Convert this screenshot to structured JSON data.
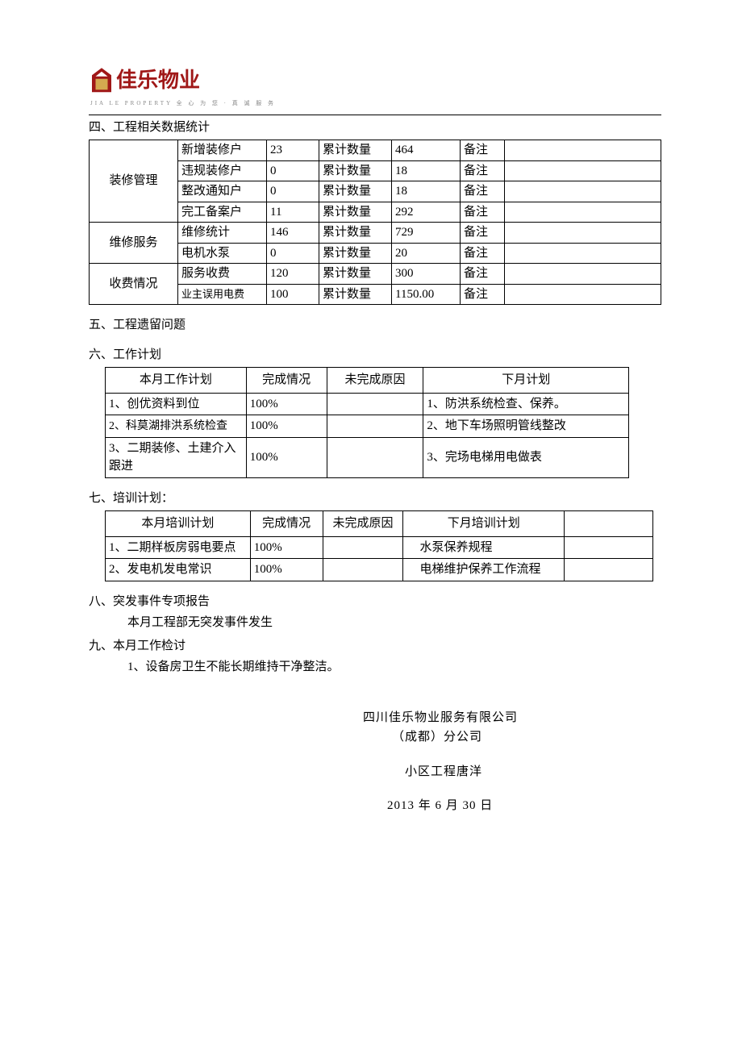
{
  "logo": {
    "name": "佳乐物业",
    "subtitle": "JIA LE PROPERTY 全 心 为 您 · 真 诚 服 务",
    "color": "#a01818"
  },
  "section4": {
    "title": "四、工程相关数据统计",
    "groups": [
      {
        "category": "装修管理",
        "rows": [
          {
            "item": "新增装修户",
            "val": "23",
            "cum_label": "累计数量",
            "cum": "464",
            "note": "备注"
          },
          {
            "item": "违规装修户",
            "val": "0",
            "cum_label": "累计数量",
            "cum": "18",
            "note": "备注"
          },
          {
            "item": "整改通知户",
            "val": "0",
            "cum_label": "累计数量",
            "cum": "18",
            "note": "备注"
          },
          {
            "item": "完工备案户",
            "val": "11",
            "cum_label": "累计数量",
            "cum": "292",
            "note": "备注"
          }
        ]
      },
      {
        "category": "维修服务",
        "rows": [
          {
            "item": "维修统计",
            "val": "146",
            "cum_label": "累计数量",
            "cum": "729",
            "note": "备注"
          },
          {
            "item": "电机水泵",
            "val": "0",
            "cum_label": "累计数量",
            "cum": "20",
            "note": "备注"
          }
        ]
      },
      {
        "category": "收费情况",
        "rows": [
          {
            "item": "服务收费",
            "val": "120",
            "cum_label": "累计数量",
            "cum": "300",
            "note": "备注"
          },
          {
            "item": "业主误用电费",
            "val": "100",
            "cum_label": "累计数量",
            "cum": "1150.00",
            "note": "备注",
            "small": true
          }
        ]
      }
    ]
  },
  "section5": {
    "title": "五、工程遗留问题"
  },
  "section6": {
    "title": "六、工作计划",
    "headers": [
      "本月工作计划",
      "完成情况",
      "未完成原因",
      "下月计划"
    ],
    "rows": [
      {
        "plan": "1、创优资料到位",
        "status": "100%",
        "reason": "",
        "next": "1、防洪系统检查、保养。"
      },
      {
        "plan": "2、科莫湖排洪系统检查",
        "status": "100%",
        "reason": "",
        "next": "2、地下车场照明管线整改",
        "small": true
      },
      {
        "plan": "3、二期装修、土建介入跟进",
        "status": "100%",
        "reason": "",
        "next": "3、完场电梯用电做表"
      }
    ]
  },
  "section7": {
    "title": "七、培训计划：",
    "headers": [
      "本月培训计划",
      "完成情况",
      "未完成原因",
      "下月培训计划",
      ""
    ],
    "rows": [
      {
        "plan": "1、二期样板房弱电要点",
        "status": "100%",
        "reason": "",
        "next": "水泵保养规程",
        "e": ""
      },
      {
        "plan": "2、发电机发电常识",
        "status": "100%",
        "reason": "",
        "next": "电梯维护保养工作流程",
        "e": ""
      }
    ]
  },
  "section8": {
    "title": "八、突发事件专项报告",
    "body": "本月工程部无突发事件发生"
  },
  "section9": {
    "title": "九、本月工作检讨",
    "body": "1、设备房卫生不能长期维持干净整洁。"
  },
  "signature": {
    "company": "四川佳乐物业服务有限公司",
    "branch": "（成都）分公司",
    "person": "小区工程唐洋",
    "date": "2013 年 6 月 30 日"
  }
}
